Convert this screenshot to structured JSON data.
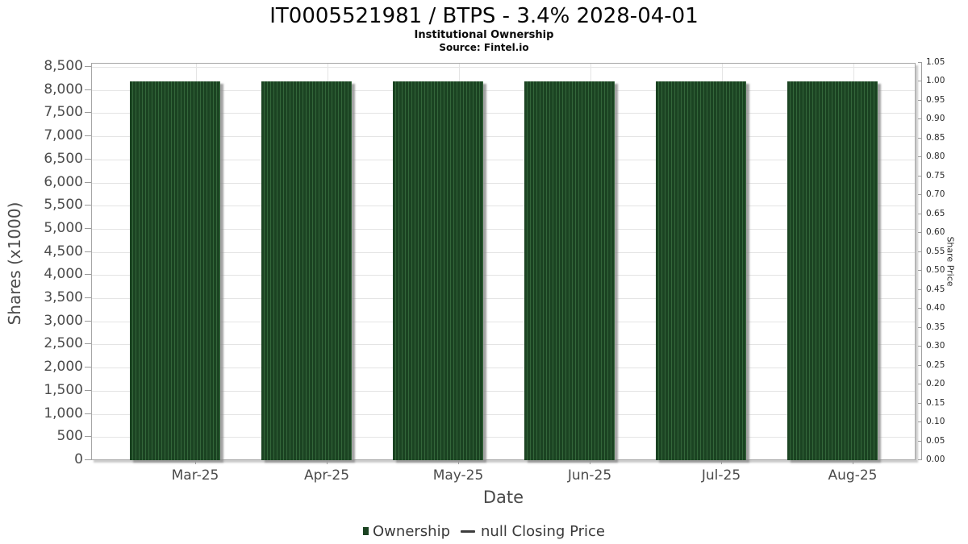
{
  "header": {
    "title": "IT0005521981 / BTPS - 3.4% 2028-04-01",
    "subtitle": "Institutional Ownership",
    "source": "Source: Fintel.io"
  },
  "chart_data": {
    "type": "bar",
    "title": "IT0005521981 / BTPS - 3.4% 2028-04-01",
    "subtitle": "Institutional Ownership",
    "source": "Source: Fintel.io",
    "xlabel": "Date",
    "ylabel_left": "Shares (x1000)",
    "ylabel_right": "Share Price",
    "categories": [
      "Mar-25",
      "Apr-25",
      "May-25",
      "Jun-25",
      "Jul-25",
      "Aug-25"
    ],
    "series": [
      {
        "name": "Ownership",
        "type": "bar",
        "color": "#1b4322",
        "values": [
          8180,
          8180,
          8180,
          8180,
          8180,
          8180
        ]
      },
      {
        "name": "null Closing Price",
        "type": "line",
        "color": "#3d3d3d",
        "values": []
      }
    ],
    "ylim_left": [
      0,
      8500
    ],
    "ytick_left_step": 500,
    "yticks_left": [
      "0",
      "500",
      "1,000",
      "1,500",
      "2,000",
      "2,500",
      "3,000",
      "3,500",
      "4,000",
      "4,500",
      "5,000",
      "5,500",
      "6,000",
      "6,500",
      "7,000",
      "7,500",
      "8,000",
      "8,500"
    ],
    "ylim_right": [
      0,
      1.05
    ],
    "ytick_right_step": 0.05,
    "yticks_right": [
      "0.00",
      "0.05",
      "0.10",
      "0.15",
      "0.20",
      "0.25",
      "0.30",
      "0.35",
      "0.40",
      "0.45",
      "0.50",
      "0.55",
      "0.60",
      "0.65",
      "0.70",
      "0.75",
      "0.80",
      "0.85",
      "0.90",
      "0.95",
      "1.00",
      "1.05"
    ],
    "grid": true,
    "legend_position": "bottom"
  },
  "legend": {
    "items": [
      {
        "label": "Ownership",
        "marker": "square",
        "color": "#1b4322"
      },
      {
        "label": "null Closing Price",
        "marker": "line",
        "color": "#3d3d3d"
      }
    ]
  },
  "colors": {
    "bar_fill": "#1b4322",
    "bar_stripe": "#33663a",
    "bar_shadow": "#969696",
    "gridline": "#e4e4e4",
    "plot_frame": "#a6a6a6",
    "tick": "#9a9a9a",
    "axis_text": "#4b4b4b",
    "right_axis_text": "#2b2b2b",
    "legend_text": "#3a3a3a",
    "background": "#ffffff"
  }
}
